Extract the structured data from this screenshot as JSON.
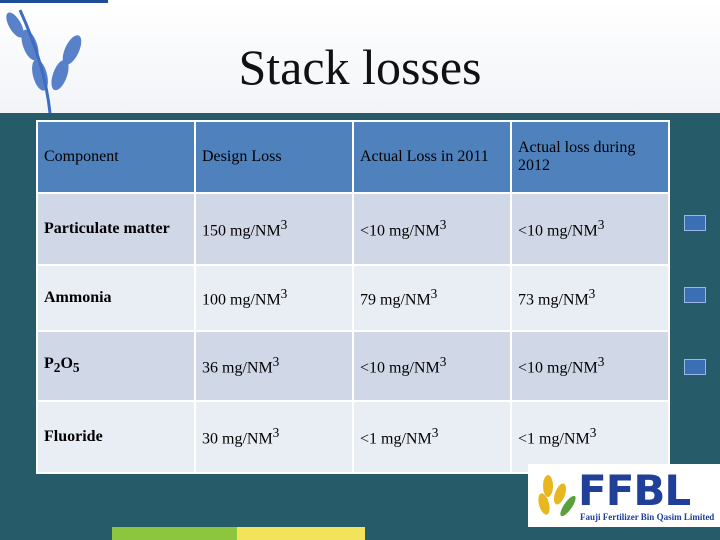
{
  "header": {
    "title": "Stack losses"
  },
  "table": {
    "columns": [
      "Component",
      "Design Loss",
      "Actual Loss in 2011",
      "Actual loss during 2012"
    ],
    "rows": [
      [
        [
          "Particulate matter"
        ],
        [
          "150 mg/NM",
          {
            "sup": "3"
          }
        ],
        [
          "<10 mg/NM",
          {
            "sup": "3"
          }
        ],
        [
          "<10 mg/NM",
          {
            "sup": "3"
          }
        ]
      ],
      [
        [
          "Ammonia"
        ],
        [
          "100 mg/NM",
          {
            "sup": "3"
          }
        ],
        [
          "79 mg/NM",
          {
            "sup": "3"
          }
        ],
        [
          "73 mg/NM",
          {
            "sup": "3"
          }
        ]
      ],
      [
        [
          "P",
          {
            "sub": "2"
          },
          "O",
          {
            "sub": "5"
          }
        ],
        [
          "36 mg/NM",
          {
            "sup": "3"
          }
        ],
        [
          "<10 mg/NM",
          {
            "sup": "3"
          }
        ],
        [
          "<10 mg/NM",
          {
            "sup": "3"
          }
        ]
      ],
      [
        [
          "Fluoride"
        ],
        [
          "30 mg/NM",
          {
            "sup": "3"
          }
        ],
        [
          "<1 mg/NM",
          {
            "sup": "3"
          }
        ],
        [
          "<1 mg/NM",
          {
            "sup": "3"
          }
        ]
      ]
    ]
  },
  "logo": {
    "name": "FFBL",
    "company": "Fauji Fertilizer Bin Qasim Limited"
  }
}
